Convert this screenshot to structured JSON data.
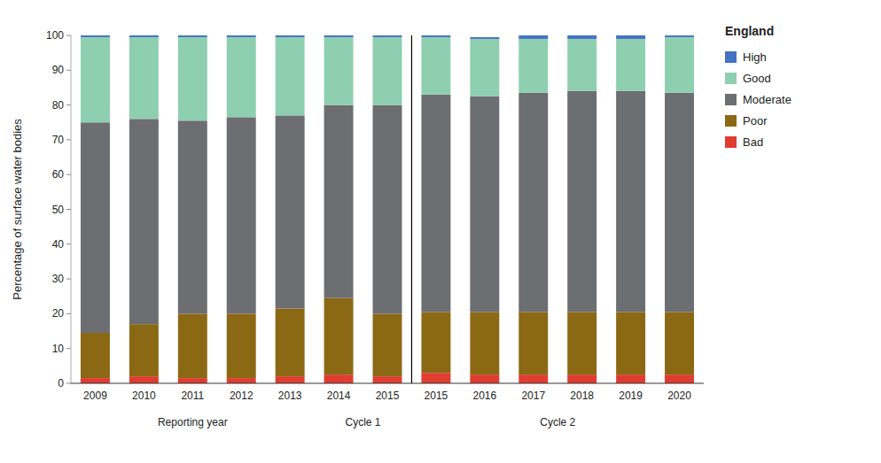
{
  "chart_data": {
    "type": "bar",
    "stacked": true,
    "legend_title": "England",
    "ylabel": "Percentage of surface water bodies",
    "categories": [
      "2009",
      "2010",
      "2011",
      "2012",
      "2013",
      "2014",
      "2015",
      "2015",
      "2016",
      "2017",
      "2018",
      "2019",
      "2020"
    ],
    "series": [
      {
        "name": "Bad",
        "color": "#e03c31",
        "values": [
          1.5,
          2.0,
          1.5,
          1.5,
          2.0,
          2.5,
          2.0,
          3.0,
          2.5,
          2.5,
          2.5,
          2.5,
          2.5
        ]
      },
      {
        "name": "Poor",
        "color": "#8b6914",
        "values": [
          13.0,
          15.0,
          18.5,
          18.5,
          19.5,
          22.0,
          18.0,
          17.5,
          18.0,
          18.0,
          18.0,
          18.0,
          18.0
        ]
      },
      {
        "name": "Moderate",
        "color": "#6d6e71",
        "values": [
          60.5,
          59.0,
          55.5,
          56.5,
          55.5,
          55.5,
          60.0,
          62.5,
          62.0,
          63.0,
          63.5,
          63.5,
          63.0
        ]
      },
      {
        "name": "Good",
        "color": "#8ecfb0",
        "values": [
          24.5,
          23.5,
          24.0,
          23.0,
          22.5,
          19.5,
          19.5,
          16.5,
          16.5,
          15.5,
          15.0,
          15.0,
          16.0
        ]
      },
      {
        "name": "High",
        "color": "#4472c4",
        "values": [
          0.5,
          0.5,
          0.5,
          0.5,
          0.5,
          0.5,
          0.5,
          0.5,
          0.5,
          1.0,
          1.0,
          1.0,
          0.5
        ]
      }
    ],
    "ylim": [
      0,
      100
    ],
    "yticks": [
      0,
      10,
      20,
      30,
      40,
      50,
      60,
      70,
      80,
      90,
      100
    ],
    "grid": false,
    "legend": "right",
    "annotations": [
      {
        "text": "Reporting year",
        "from": 0,
        "to": 4
      },
      {
        "text": "Cycle 1",
        "from": 5,
        "to": 6
      },
      {
        "text": "Cycle 2",
        "from": 7,
        "to": 12
      }
    ],
    "divider_between": [
      6,
      7
    ]
  }
}
